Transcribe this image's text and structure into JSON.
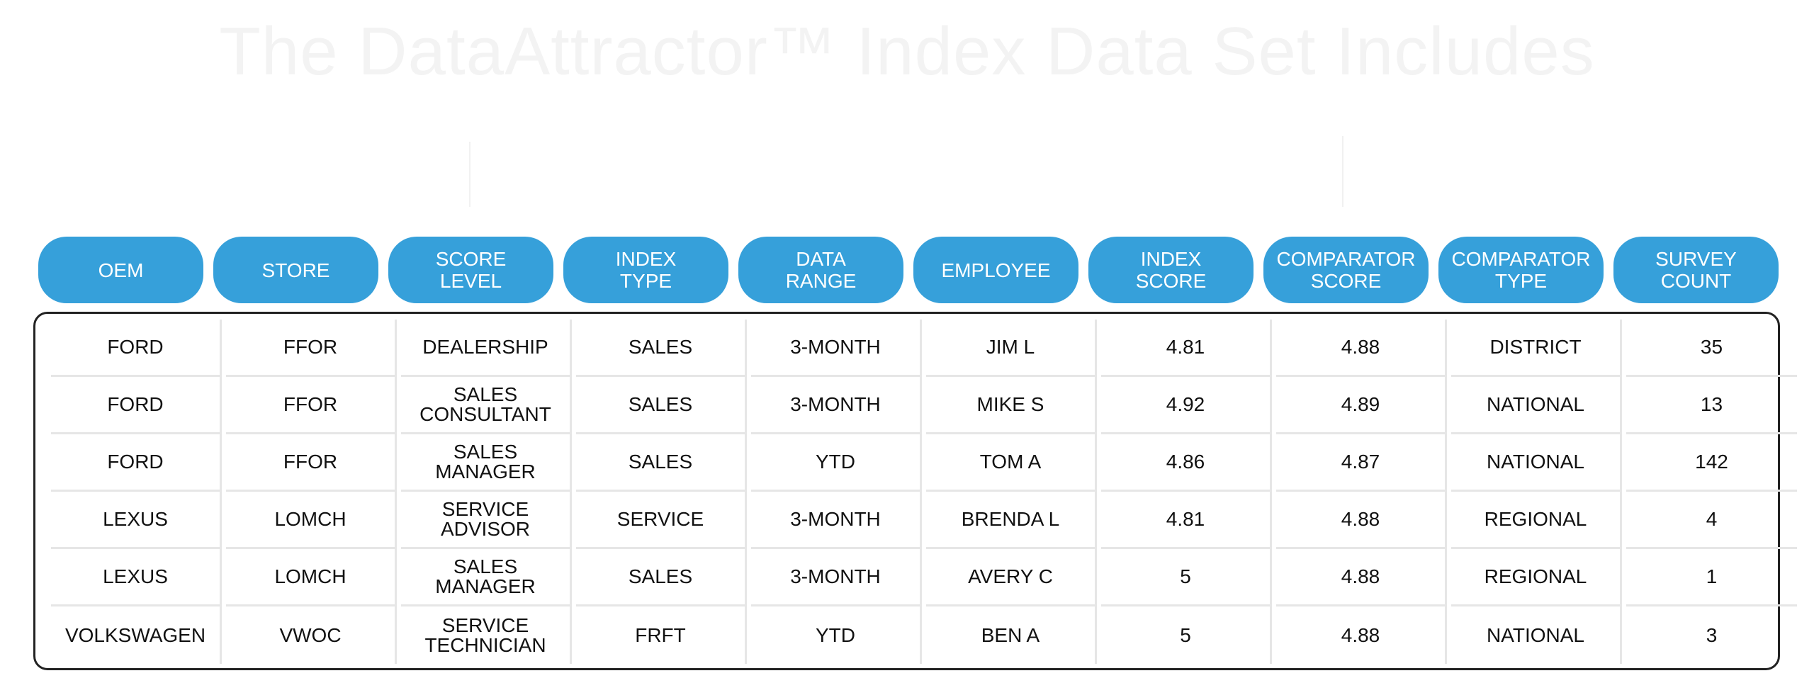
{
  "title": "The DataAttractor™ Index Data Set Includes",
  "colors": {
    "header_pill": "#36a0da",
    "border": "#222222",
    "grid": "#e6e6e6"
  },
  "headers": [
    "OEM",
    "STORE",
    "SCORE\nLEVEL",
    "INDEX\nTYPE",
    "DATA\nRANGE",
    "EMPLOYEE",
    "INDEX\nSCORE",
    "COMPARATOR\nSCORE",
    "COMPARATOR\nTYPE",
    "SURVEY\nCOUNT"
  ],
  "rows": [
    [
      "FORD",
      "FFOR",
      "DEALERSHIP",
      "SALES",
      "3-MONTH",
      "JIM L",
      "4.81",
      "4.88",
      "DISTRICT",
      "35"
    ],
    [
      "FORD",
      "FFOR",
      "SALES\nCONSULTANT",
      "SALES",
      "3-MONTH",
      "MIKE S",
      "4.92",
      "4.89",
      "NATIONAL",
      "13"
    ],
    [
      "FORD",
      "FFOR",
      "SALES\nMANAGER",
      "SALES",
      "YTD",
      "TOM A",
      "4.86",
      "4.87",
      "NATIONAL",
      "142"
    ],
    [
      "LEXUS",
      "LOMCH",
      "SERVICE\nADVISOR",
      "SERVICE",
      "3-MONTH",
      "BRENDA L",
      "4.81",
      "4.88",
      "REGIONAL",
      "4"
    ],
    [
      "LEXUS",
      "LOMCH",
      "SALES\nMANAGER",
      "SALES",
      "3-MONTH",
      "AVERY C",
      "5",
      "4.88",
      "REGIONAL",
      "1"
    ],
    [
      "VOLKSWAGEN",
      "VWOC",
      "SERVICE\nTECHNICIAN",
      "FRFT",
      "YTD",
      "BEN A",
      "5",
      "4.88",
      "NATIONAL",
      "3"
    ]
  ]
}
